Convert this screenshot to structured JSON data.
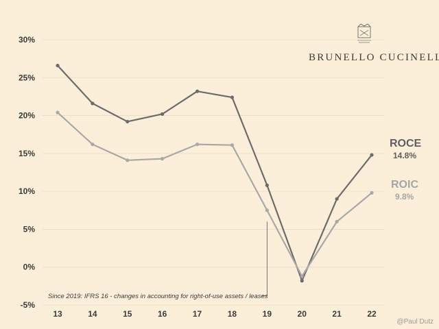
{
  "chart_data": {
    "type": "line",
    "x": [
      "13",
      "14",
      "15",
      "16",
      "17",
      "18",
      "19",
      "20",
      "21",
      "22"
    ],
    "ylim": [
      -5,
      30
    ],
    "yticks": [
      -5,
      0,
      5,
      10,
      15,
      20,
      25,
      30
    ],
    "ytick_labels": [
      "-5%",
      "0%",
      "5%",
      "10%",
      "15%",
      "20%",
      "25%",
      "30%"
    ],
    "grid": "horizontal",
    "series": [
      {
        "name": "ROCE",
        "values": [
          26.6,
          21.6,
          19.2,
          20.2,
          23.2,
          22.4,
          10.8,
          -1.8,
          9.0,
          14.8
        ],
        "color": "#6b6b6b",
        "end_label": "14.8%"
      },
      {
        "name": "ROIC",
        "values": [
          20.4,
          16.2,
          14.1,
          14.3,
          16.2,
          16.1,
          7.5,
          -1.2,
          6.0,
          9.8
        ],
        "color": "#a8a8a8",
        "end_label": "9.8%"
      }
    ],
    "annotation": {
      "text": "Since 2019:  IFRS 16 -  changes in accounting for right-of-use assets / leases",
      "x": "19",
      "y_top": 6.0,
      "y_bottom": -3.8
    }
  },
  "brand": {
    "name": "BRUNELLO CUCINELLI",
    "logo_icon": "crest-icon"
  },
  "credit": "@Paul Dutz",
  "colors": {
    "background": "#fbefd9",
    "grid": "#e9dcc5",
    "text": "#3a3a3a"
  }
}
